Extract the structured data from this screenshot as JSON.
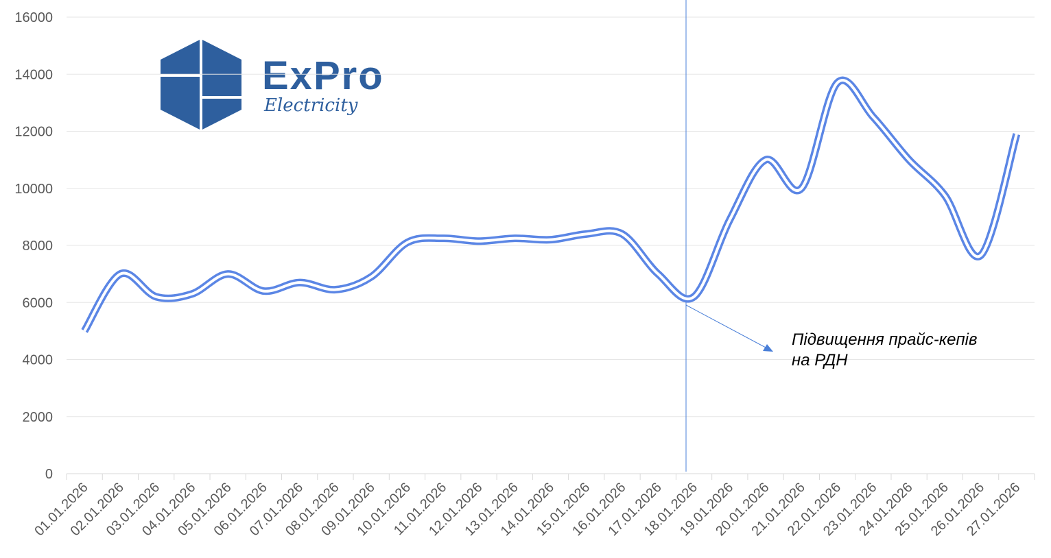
{
  "logo": {
    "name": "ExPro",
    "tagline": "Electricity"
  },
  "chart_data": {
    "type": "line",
    "categories": [
      "01.01.2026",
      "02.01.2026",
      "03.01.2026",
      "04.01.2026",
      "05.01.2026",
      "06.01.2026",
      "07.01.2026",
      "08.01.2026",
      "09.01.2026",
      "10.01.2026",
      "11.01.2026",
      "12.01.2026",
      "13.01.2026",
      "14.01.2026",
      "15.01.2026",
      "16.01.2026",
      "17.01.2026",
      "18.01.2026",
      "19.01.2026",
      "20.01.2026",
      "21.01.2026",
      "22.01.2026",
      "23.01.2026",
      "24.01.2026",
      "25.01.2026",
      "26.01.2026",
      "27.01.2026"
    ],
    "series": [
      {
        "color": "#5b86e5",
        "values": [
          5000,
          7000,
          6200,
          6300,
          7000,
          6400,
          6700,
          6450,
          6900,
          8100,
          8250,
          8150,
          8250,
          8200,
          8400,
          8400,
          7000,
          6200,
          8900,
          11000,
          10000,
          13700,
          12500,
          11000,
          9750,
          7650,
          11900
        ]
      }
    ],
    "ylim": [
      0,
      16000
    ],
    "yticks": [
      0,
      2000,
      4000,
      6000,
      8000,
      10000,
      12000,
      14000,
      16000
    ],
    "grid": true,
    "annotation": {
      "lines": [
        "Підвищення прайс-кепів",
        "на РДН"
      ]
    }
  }
}
